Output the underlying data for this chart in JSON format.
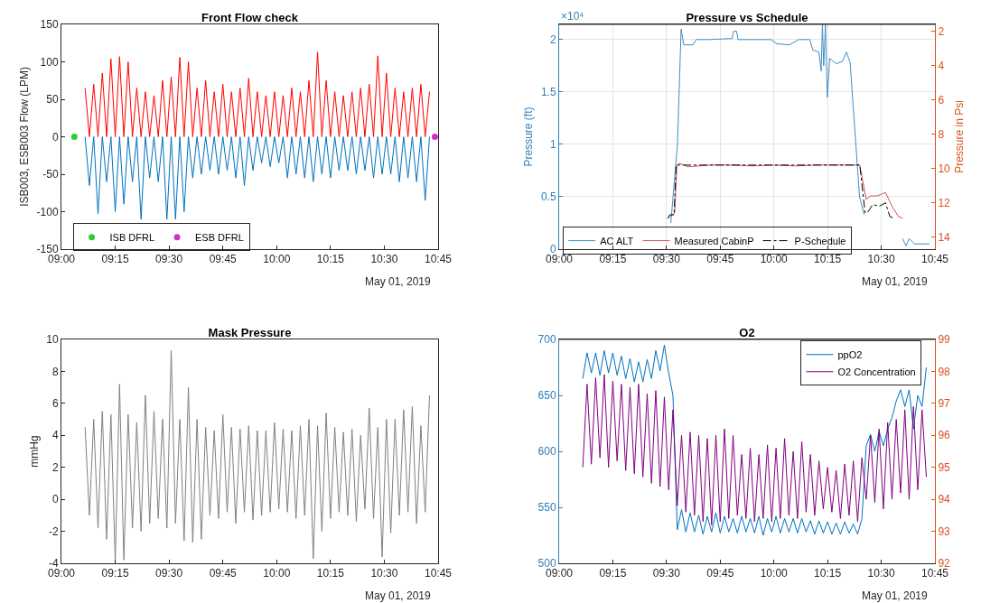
{
  "chart_data": [
    {
      "type": "line",
      "title": "Front Flow check",
      "ylabel": "ISB003, ESB003 Flow (LPM)",
      "annotations": [
        "May 01, 2019"
      ],
      "xlim": [
        9,
        10.75
      ],
      "xticks": [
        {
          "value": 9,
          "label": "09:00"
        },
        {
          "value": 9.25,
          "label": "09:15"
        },
        {
          "value": 9.5,
          "label": "09:30"
        },
        {
          "value": 9.75,
          "label": "09:45"
        },
        {
          "value": 10,
          "label": "10:00"
        },
        {
          "value": 10.25,
          "label": "10:15"
        },
        {
          "value": 10.5,
          "label": "10:30"
        },
        {
          "value": 10.75,
          "label": "10:45"
        }
      ],
      "ylim": [
        -150,
        150
      ],
      "yticks": [
        -150,
        -100,
        -50,
        0,
        50,
        100,
        150
      ],
      "grid": false,
      "legend": "bottom left",
      "x": [
        9.11,
        9.13,
        9.15,
        9.17,
        9.19,
        9.21,
        9.23,
        9.25,
        9.27,
        9.29,
        9.31,
        9.33,
        9.35,
        9.37,
        9.39,
        9.41,
        9.43,
        9.45,
        9.47,
        9.49,
        9.51,
        9.53,
        9.55,
        9.57,
        9.59,
        9.61,
        9.63,
        9.65,
        9.67,
        9.69,
        9.71,
        9.73,
        9.75,
        9.77,
        9.79,
        9.81,
        9.83,
        9.85,
        9.87,
        9.89,
        9.91,
        9.93,
        9.95,
        9.97,
        9.99,
        10.01,
        10.03,
        10.05,
        10.07,
        10.09,
        10.11,
        10.13,
        10.15,
        10.17,
        10.19,
        10.21,
        10.23,
        10.25,
        10.27,
        10.29,
        10.31,
        10.33,
        10.35,
        10.37,
        10.39,
        10.41,
        10.43,
        10.45,
        10.47,
        10.49,
        10.51,
        10.53,
        10.55,
        10.57,
        10.59,
        10.61,
        10.63,
        10.65,
        10.67,
        10.69,
        10.71
      ],
      "series": [
        {
          "color": "#ff0000",
          "values": [
            65,
            0,
            70,
            0,
            85,
            0,
            104,
            0,
            107,
            0,
            100,
            0,
            65,
            0,
            60,
            0,
            55,
            0,
            75,
            0,
            80,
            0,
            106,
            0,
            100,
            0,
            65,
            0,
            75,
            0,
            60,
            0,
            70,
            0,
            60,
            0,
            65,
            0,
            78,
            0,
            60,
            0,
            55,
            0,
            60,
            0,
            55,
            0,
            65,
            0,
            60,
            0,
            75,
            0,
            113,
            0,
            75,
            0,
            60,
            0,
            55,
            0,
            60,
            0,
            65,
            0,
            70,
            0,
            108,
            0,
            85,
            0,
            65,
            0,
            60,
            0,
            65,
            0,
            70,
            0,
            60
          ]
        },
        {
          "color": "#0072bd",
          "values": [
            0,
            -65,
            0,
            -103,
            0,
            -60,
            0,
            -100,
            0,
            -90,
            0,
            -60,
            0,
            -110,
            0,
            -55,
            0,
            -60,
            0,
            -110,
            0,
            -110,
            0,
            -100,
            0,
            -55,
            0,
            -50,
            0,
            -45,
            0,
            -50,
            0,
            -45,
            0,
            -55,
            0,
            -65,
            0,
            -45,
            0,
            -35,
            0,
            -40,
            0,
            -35,
            0,
            -55,
            0,
            -50,
            0,
            -55,
            0,
            -60,
            0,
            -50,
            0,
            -55,
            0,
            -45,
            0,
            -45,
            0,
            -50,
            0,
            -45,
            0,
            -55,
            0,
            -50,
            0,
            -50,
            0,
            -60,
            0,
            -55,
            0,
            -60,
            0,
            -85,
            0
          ]
        },
        {
          "type": "scatter",
          "name": "ISB DFRL",
          "color": "#33cc33",
          "marker": "circle",
          "x": [
            9.06
          ],
          "values": [
            0
          ]
        },
        {
          "type": "scatter",
          "name": "ESB DFRL",
          "color": "#cc33cc",
          "marker": "circle",
          "x": [
            10.735
          ],
          "values": [
            0
          ]
        }
      ]
    },
    {
      "type": "line",
      "title": "Pressure vs Schedule",
      "ylabel": "Pressure (ft)",
      "y2label": "Pressure in Psi",
      "annotations": [
        "×10⁴",
        "May 01, 2019"
      ],
      "xlim": [
        9,
        10.75
      ],
      "xticks": [
        {
          "value": 9,
          "label": "09:00"
        },
        {
          "value": 9.25,
          "label": "09:15"
        },
        {
          "value": 9.5,
          "label": "09:30"
        },
        {
          "value": 9.75,
          "label": "09:45"
        },
        {
          "value": 10,
          "label": "10:00"
        },
        {
          "value": 10.25,
          "label": "10:15"
        },
        {
          "value": 10.5,
          "label": "10:30"
        },
        {
          "value": 10.75,
          "label": "10:45"
        }
      ],
      "ylim": [
        0,
        2.145
      ],
      "yticks": [
        0,
        0.5,
        1,
        1.5,
        2
      ],
      "y2lim": [
        14.7,
        1.6
      ],
      "y2ticks": [
        2,
        4,
        6,
        8,
        10,
        12,
        14
      ],
      "grid": true,
      "legend": "bottom",
      "series": [
        {
          "name": "AC ALT",
          "color": "#3d8fc6",
          "x": [
            9.52,
            9.551,
            9.568,
            9.58,
            9.623,
            9.638,
            9.696,
            9.805,
            9.812,
            9.826,
            9.833,
            9.986,
            10.014,
            10.072,
            10.116,
            10.167,
            10.181,
            10.21,
            10.22,
            10.226,
            10.232,
            10.24,
            10.249,
            10.26,
            10.29,
            10.319,
            10.338,
            10.355,
            10.399,
            10.42,
            10.5,
            10.6,
            10.615,
            10.63,
            10.655,
            10.725
          ],
          "values": [
            0.25,
            1.0,
            2.1,
            1.95,
            1.95,
            2.0,
            2.0,
            2.01,
            2.08,
            2.08,
            2.0,
            2.0,
            1.96,
            1.95,
            2.0,
            2.0,
            1.9,
            1.88,
            1.7,
            2.14,
            1.75,
            2.14,
            1.45,
            1.82,
            1.77,
            1.79,
            1.88,
            1.78,
            0.5,
            0.33,
            null,
            0.1,
            0.03,
            0.1,
            0.05,
            0.05
          ]
        },
        {
          "name": "Measured CabinP",
          "axis": "y2",
          "color": "#d0505a",
          "x": [
            9.51,
            9.525,
            9.538,
            9.548,
            9.56,
            9.6,
            9.7,
            9.8,
            9.9,
            10.0,
            10.1,
            10.2,
            10.3,
            10.4,
            10.43,
            10.45,
            10.48,
            10.52,
            10.55,
            10.58,
            10.6
          ],
          "values": [
            12.9,
            12.7,
            12.6,
            9.8,
            9.7,
            9.9,
            9.8,
            9.8,
            9.85,
            9.8,
            9.85,
            9.8,
            9.8,
            9.8,
            11.8,
            11.6,
            11.6,
            11.4,
            12.2,
            12.8,
            12.9
          ]
        },
        {
          "name": "P-Schedule",
          "axis": "y2",
          "color": "#000000",
          "line_style": "dashed",
          "x": [
            9.505,
            9.515,
            9.535,
            9.545,
            10.4,
            10.425,
            10.44,
            10.46,
            10.49,
            10.52,
            10.54,
            10.56
          ],
          "values": [
            12.9,
            12.7,
            12.7,
            9.8,
            9.8,
            12.6,
            12.5,
            12.1,
            12.2,
            12.0,
            12.8,
            12.9
          ]
        }
      ]
    },
    {
      "type": "line",
      "title": "Mask Pressure",
      "ylabel": "mmHg",
      "annotations": [
        "May 01, 2019"
      ],
      "xlim": [
        9,
        10.75
      ],
      "xticks": [
        {
          "value": 9,
          "label": "09:00"
        },
        {
          "value": 9.25,
          "label": "09:15"
        },
        {
          "value": 9.5,
          "label": "09:30"
        },
        {
          "value": 9.75,
          "label": "09:45"
        },
        {
          "value": 10,
          "label": "10:00"
        },
        {
          "value": 10.25,
          "label": "10:15"
        },
        {
          "value": 10.5,
          "label": "10:30"
        },
        {
          "value": 10.75,
          "label": "10:45"
        }
      ],
      "ylim": [
        -4,
        10
      ],
      "yticks": [
        -4,
        -2,
        0,
        2,
        4,
        6,
        8,
        10
      ],
      "grid": false,
      "x": [
        9.11,
        9.13,
        9.15,
        9.17,
        9.19,
        9.21,
        9.23,
        9.25,
        9.27,
        9.29,
        9.31,
        9.33,
        9.35,
        9.37,
        9.39,
        9.41,
        9.43,
        9.45,
        9.47,
        9.49,
        9.51,
        9.53,
        9.55,
        9.57,
        9.59,
        9.61,
        9.63,
        9.65,
        9.67,
        9.69,
        9.71,
        9.73,
        9.75,
        9.77,
        9.79,
        9.81,
        9.83,
        9.85,
        9.87,
        9.89,
        9.91,
        9.93,
        9.95,
        9.97,
        9.99,
        10.01,
        10.03,
        10.05,
        10.07,
        10.09,
        10.11,
        10.13,
        10.15,
        10.17,
        10.19,
        10.21,
        10.23,
        10.25,
        10.27,
        10.29,
        10.31,
        10.33,
        10.35,
        10.37,
        10.39,
        10.41,
        10.43,
        10.45,
        10.47,
        10.49,
        10.51,
        10.53,
        10.55,
        10.57,
        10.59,
        10.61,
        10.63,
        10.65,
        10.67,
        10.69,
        10.71
      ],
      "series": [
        {
          "color": "#808080",
          "values": [
            4.5,
            -1.0,
            5.0,
            -1.8,
            5.5,
            -2.5,
            5.3,
            -3.9,
            7.2,
            -3.8,
            5.3,
            -1.8,
            4.8,
            -2.0,
            6.5,
            -1.5,
            5.5,
            -1.2,
            5.0,
            -1.8,
            9.3,
            -1.5,
            5.0,
            -2.6,
            7.0,
            -2.7,
            5.0,
            -2.5,
            4.5,
            -1.0,
            4.3,
            -1.2,
            5.3,
            -0.8,
            4.5,
            -1.5,
            4.4,
            -0.8,
            4.6,
            -1.3,
            4.3,
            -1.0,
            4.3,
            -0.8,
            4.8,
            -0.6,
            4.4,
            -0.8,
            4.3,
            -1.2,
            4.6,
            -1.0,
            5.0,
            -3.7,
            4.6,
            -2.0,
            5.4,
            -1.2,
            4.5,
            -0.8,
            4.2,
            -1.0,
            4.4,
            -1.4,
            4.0,
            -0.6,
            5.7,
            -1.2,
            4.5,
            -3.6,
            5.0,
            -2.1,
            5.0,
            -1.0,
            5.6,
            -0.8,
            5.8,
            -1.5,
            4.6,
            -0.8,
            6.5
          ]
        }
      ]
    },
    {
      "type": "line",
      "title": "O2",
      "annotations": [
        "May 01, 2019"
      ],
      "xlim": [
        9,
        10.75
      ],
      "xticks": [
        {
          "value": 9,
          "label": "09:00"
        },
        {
          "value": 9.25,
          "label": "09:15"
        },
        {
          "value": 9.5,
          "label": "09:30"
        },
        {
          "value": 9.75,
          "label": "09:45"
        },
        {
          "value": 10,
          "label": "10:00"
        },
        {
          "value": 10.25,
          "label": "10:15"
        },
        {
          "value": 10.5,
          "label": "10:30"
        },
        {
          "value": 10.75,
          "label": "10:45"
        }
      ],
      "ylim": [
        500,
        700
      ],
      "yticks": [
        500,
        550,
        600,
        650,
        700
      ],
      "y2lim": [
        92,
        99
      ],
      "y2ticks": [
        92,
        93,
        94,
        95,
        96,
        97,
        98,
        99
      ],
      "grid": false,
      "legend": "top right",
      "x": [
        9.11,
        9.13,
        9.15,
        9.17,
        9.19,
        9.21,
        9.23,
        9.25,
        9.27,
        9.29,
        9.31,
        9.33,
        9.35,
        9.37,
        9.39,
        9.41,
        9.43,
        9.45,
        9.47,
        9.49,
        9.51,
        9.53,
        9.55,
        9.57,
        9.59,
        9.61,
        9.63,
        9.65,
        9.67,
        9.69,
        9.71,
        9.73,
        9.75,
        9.77,
        9.79,
        9.81,
        9.83,
        9.85,
        9.87,
        9.89,
        9.91,
        9.93,
        9.95,
        9.97,
        9.99,
        10.01,
        10.03,
        10.05,
        10.07,
        10.09,
        10.11,
        10.13,
        10.15,
        10.17,
        10.19,
        10.21,
        10.23,
        10.25,
        10.27,
        10.29,
        10.31,
        10.33,
        10.35,
        10.37,
        10.39,
        10.41,
        10.43,
        10.45,
        10.47,
        10.49,
        10.51,
        10.53,
        10.55,
        10.57,
        10.59,
        10.61,
        10.63,
        10.65,
        10.67,
        10.69,
        10.71
      ],
      "series": [
        {
          "name": "ppO2",
          "color": "#0072bd",
          "values": [
            665,
            688,
            670,
            688,
            668,
            690,
            670,
            688,
            668,
            685,
            665,
            683,
            662,
            680,
            662,
            682,
            665,
            690,
            672,
            695,
            670,
            650,
            530,
            548,
            528,
            545,
            528,
            543,
            526,
            542,
            528,
            545,
            527,
            542,
            528,
            540,
            527,
            542,
            528,
            540,
            527,
            542,
            525,
            540,
            528,
            542,
            527,
            540,
            528,
            540,
            527,
            540,
            528,
            538,
            526,
            538,
            527,
            537,
            526,
            536,
            526,
            537,
            527,
            535,
            526,
            540,
            605,
            615,
            600,
            618,
            605,
            620,
            630,
            645,
            655,
            640,
            655,
            620,
            650,
            640,
            675
          ]
        },
        {
          "name": "O2 Concentration",
          "axis": "y2",
          "color": "#800080",
          "values": [
            95.0,
            97.6,
            95.1,
            97.8,
            95.3,
            97.9,
            95.0,
            97.7,
            95.2,
            97.6,
            94.9,
            97.5,
            94.8,
            97.6,
            94.7,
            97.3,
            94.5,
            97.4,
            94.4,
            97.2,
            94.3,
            96.8,
            93.8,
            96.0,
            93.6,
            96.1,
            93.5,
            96.0,
            93.3,
            95.9,
            93.2,
            96.0,
            93.3,
            96.2,
            93.4,
            96.0,
            93.5,
            95.4,
            93.4,
            95.6,
            93.3,
            95.4,
            93.4,
            95.7,
            93.3,
            95.6,
            93.4,
            95.9,
            93.5,
            95.5,
            93.4,
            95.8,
            93.6,
            95.4,
            93.5,
            95.2,
            93.7,
            95.0,
            93.6,
            94.9,
            93.4,
            95.1,
            93.5,
            95.2,
            93.3,
            95.3,
            94.0,
            96.0,
            93.9,
            96.2,
            93.7,
            96.4,
            94.0,
            96.5,
            94.2,
            96.8,
            94.0,
            96.9,
            94.3,
            96.8,
            94.7
          ]
        }
      ]
    }
  ]
}
